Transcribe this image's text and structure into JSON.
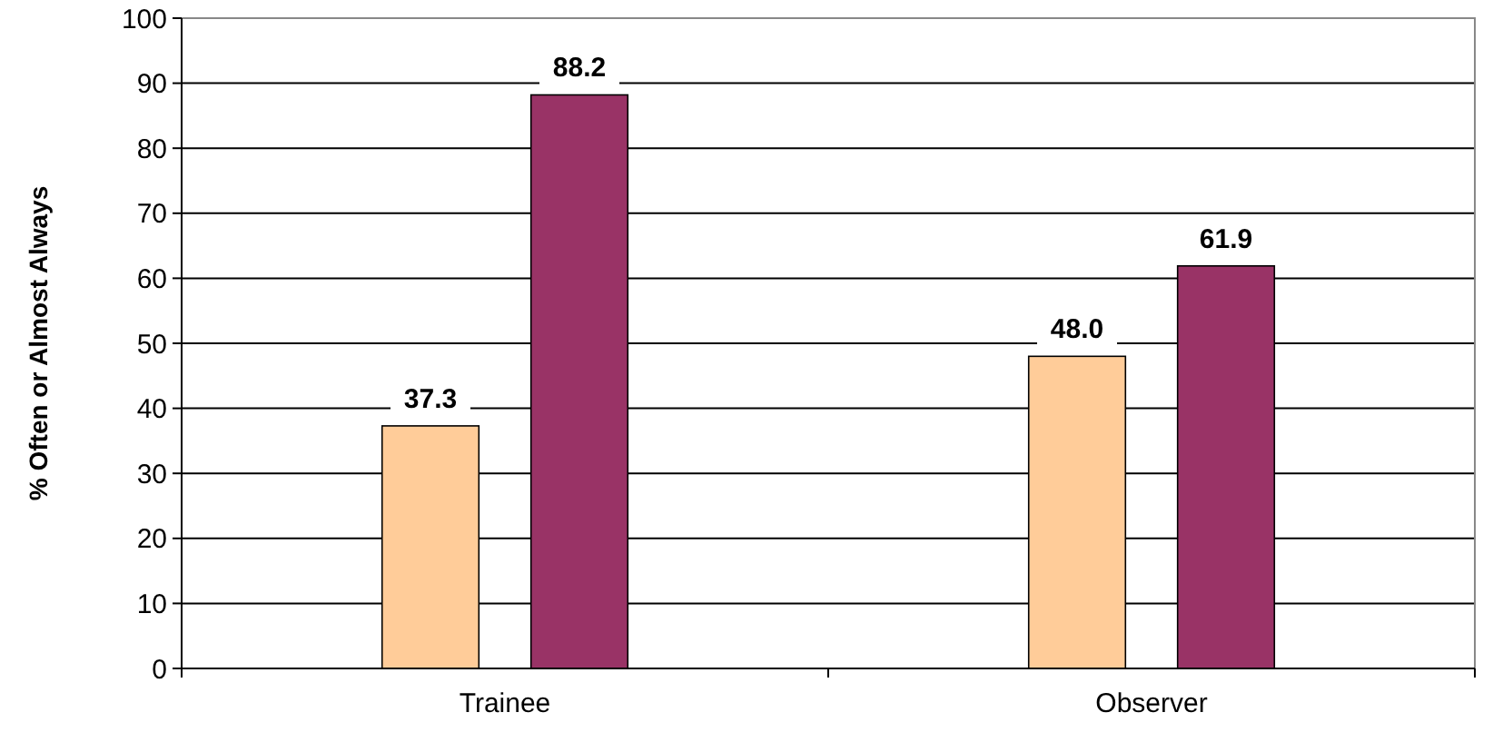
{
  "chart_data": {
    "type": "bar",
    "ylabel": "% Often or Almost Always",
    "categories": [
      "Trainee",
      "Observer"
    ],
    "series": [
      {
        "color": "#ffcc99",
        "values": [
          37.3,
          48.0
        ],
        "value_labels": [
          "37.3",
          "48.0"
        ]
      },
      {
        "color": "#993366",
        "values": [
          88.2,
          61.9
        ],
        "value_labels": [
          "88.2",
          "61.9"
        ]
      }
    ],
    "ylim": [
      0,
      100
    ],
    "yticks": [
      0,
      10,
      20,
      30,
      40,
      50,
      60,
      70,
      80,
      90,
      100
    ],
    "grid": "y"
  }
}
